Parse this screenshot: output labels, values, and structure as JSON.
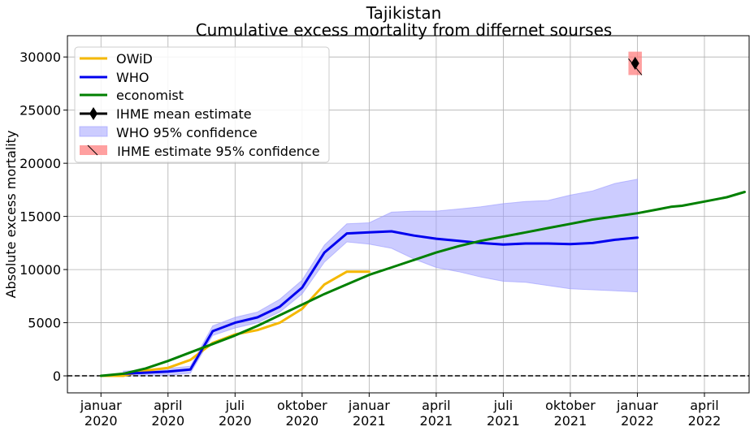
{
  "chart_data": {
    "type": "line",
    "title": "Tajikistan",
    "subtitle": "Cumulative excess mortality from differnet sourses",
    "xlabel": "",
    "ylabel": "Absolute excess mortality",
    "ylim": [
      -1600,
      32000
    ],
    "xlim": [
      -1.5,
      29.0
    ],
    "x_unit": "months since January 2020",
    "yticks": [
      0,
      5000,
      10000,
      15000,
      20000,
      25000,
      30000
    ],
    "xticks": [
      {
        "x": 0,
        "line1": "januar",
        "line2": "2020"
      },
      {
        "x": 3,
        "line1": "april",
        "line2": "2020"
      },
      {
        "x": 6,
        "line1": "juli",
        "line2": "2020"
      },
      {
        "x": 9,
        "line1": "oktober",
        "line2": "2020"
      },
      {
        "x": 12,
        "line1": "januar",
        "line2": "2021"
      },
      {
        "x": 15,
        "line1": "april",
        "line2": "2021"
      },
      {
        "x": 18,
        "line1": "juli",
        "line2": "2021"
      },
      {
        "x": 21,
        "line1": "oktober",
        "line2": "2021"
      },
      {
        "x": 24,
        "line1": "januar",
        "line2": "2022"
      },
      {
        "x": 27,
        "line1": "april",
        "line2": "2022"
      }
    ],
    "grid": true,
    "legend_position": "top-left",
    "series": [
      {
        "name": "OWiD",
        "color": "#f5b800",
        "x": [
          0,
          1,
          2,
          3,
          4,
          5,
          6,
          7,
          8,
          9,
          10,
          11,
          12
        ],
        "y": [
          0,
          0,
          500,
          750,
          1500,
          3100,
          3900,
          4300,
          5000,
          6300,
          8600,
          9800,
          9800
        ]
      },
      {
        "name": "WHO",
        "color": "#0000ee",
        "x": [
          1,
          2,
          3,
          4,
          5,
          6,
          7,
          8,
          9,
          10,
          11,
          12,
          13,
          14,
          15,
          16,
          17,
          18,
          19,
          20,
          21,
          22,
          23,
          24
        ],
        "y": [
          200,
          300,
          400,
          600,
          4200,
          5000,
          5500,
          6500,
          8300,
          11600,
          13400,
          13500,
          13600,
          13200,
          12900,
          12700,
          12500,
          12350,
          12450,
          12450,
          12400,
          12500,
          12800,
          13000
        ]
      },
      {
        "name": "economist",
        "color": "#008000",
        "x": [
          0,
          1,
          2,
          3,
          4,
          5,
          6,
          7,
          8,
          9,
          10,
          11,
          12,
          13,
          14,
          15,
          16,
          17,
          18,
          19,
          20,
          21,
          22,
          23,
          24,
          25,
          25.5,
          26,
          27,
          28,
          28.8
        ],
        "y": [
          0,
          200,
          700,
          1400,
          2200,
          3000,
          3800,
          4700,
          5700,
          6700,
          7700,
          8600,
          9500,
          10200,
          10900,
          11600,
          12200,
          12700,
          13100,
          13500,
          13900,
          14300,
          14700,
          15000,
          15300,
          15700,
          15900,
          16000,
          16400,
          16800,
          17300
        ]
      }
    ],
    "who_band": {
      "name": "WHO 95% confidence",
      "color": "#9a9aff",
      "x": [
        1,
        2,
        3,
        4,
        5,
        6,
        7,
        8,
        9,
        10,
        11,
        12,
        13,
        14,
        15,
        16,
        17,
        18,
        19,
        20,
        21,
        22,
        23,
        24
      ],
      "upper": [
        450,
        550,
        700,
        900,
        4700,
        5500,
        6000,
        7200,
        9000,
        12300,
        14300,
        14400,
        15400,
        15500,
        15500,
        15700,
        15900,
        16200,
        16400,
        16500,
        17000,
        17400,
        18100,
        18500
      ],
      "lower": [
        0,
        0,
        50,
        250,
        3800,
        4500,
        5000,
        6000,
        7700,
        10700,
        12600,
        12400,
        12000,
        11000,
        10200,
        9800,
        9300,
        8900,
        8800,
        8500,
        8200,
        8100,
        8000,
        7900
      ]
    },
    "ihme": {
      "mean_name": "IHME mean estimate",
      "ci_name": " IHME estimate 95% confidence",
      "x": 23.9,
      "mean": 29400,
      "lower": 28300,
      "upper": 30500,
      "band_halfwidth": 0.3,
      "color": "#ff8080"
    },
    "zero_line": {
      "y": 0,
      "style": "dashed",
      "color": "#000000"
    }
  }
}
